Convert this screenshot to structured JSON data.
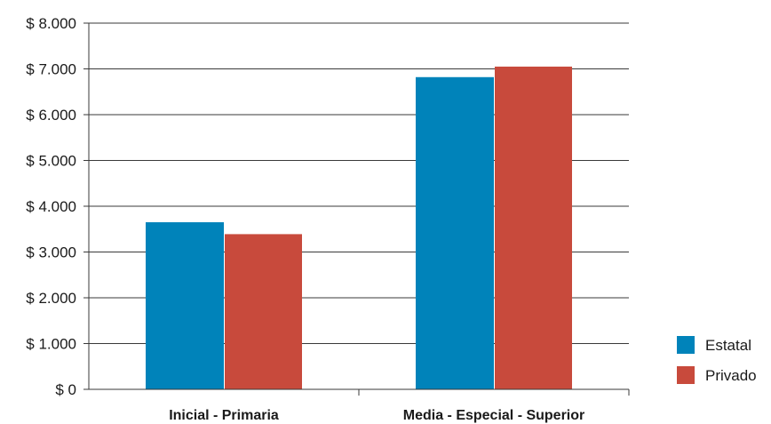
{
  "chart_data": {
    "type": "bar",
    "title": "",
    "xlabel": "",
    "ylabel": "",
    "categories": [
      "Inicial - Primaria",
      "Media - Especial - Superior"
    ],
    "series": [
      {
        "name": "Estatal",
        "color": "#0083ba",
        "values": [
          3650,
          6820
        ]
      },
      {
        "name": "Privado",
        "color": "#c84a3c",
        "values": [
          3390,
          7050
        ]
      }
    ],
    "ylim": [
      0,
      8000
    ],
    "yticks": [
      0,
      1000,
      2000,
      3000,
      4000,
      5000,
      6000,
      7000,
      8000
    ],
    "ytick_labels": [
      "$ 0",
      "$ 1.000",
      "$ 2.000",
      "$ 3.000",
      "$ 4.000",
      "$ 5.000",
      "$ 6.000",
      "$ 7.000",
      "$ 8.000"
    ],
    "grid": true,
    "legend_position": "bottom-right"
  }
}
